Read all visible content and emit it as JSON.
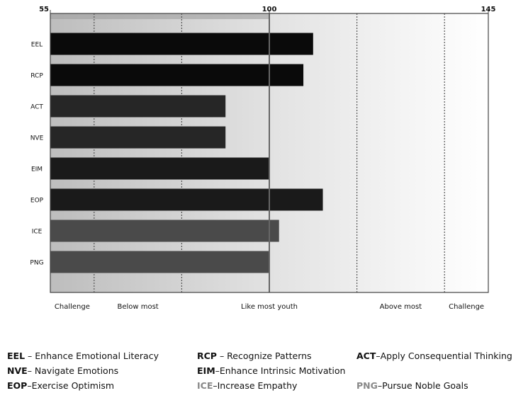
{
  "chart_data": {
    "type": "bar",
    "orientation": "horizontal",
    "title": "",
    "xlabel": "",
    "ylabel": "",
    "xlim": [
      55,
      145
    ],
    "top_ticks": [
      "55",
      "100",
      "145"
    ],
    "categories": [
      "EEL",
      "RCP",
      "ACT",
      "NVE",
      "EIM",
      "EOP",
      "ICE",
      "PNG"
    ],
    "values": [
      109,
      107,
      91,
      91,
      100,
      111,
      102,
      100
    ],
    "bar_colors": [
      "#0a0a0a",
      "#0a0a0a",
      "#262626",
      "#262626",
      "#1a1a1a",
      "#1a1a1a",
      "#4a4a4a",
      "#4a4a4a"
    ],
    "bands": [
      {
        "label": "Challenge",
        "from": 55,
        "to": 64
      },
      {
        "label": "Below most",
        "from": 64,
        "to": 82
      },
      {
        "label": "Like most youth",
        "from": 82,
        "to": 118
      },
      {
        "label": "Above most",
        "from": 118,
        "to": 136
      },
      {
        "label": "Challenge",
        "from": 136,
        "to": 145
      }
    ],
    "reference_line": 100,
    "grid": false
  },
  "legend": {
    "rows": [
      [
        {
          "abbr": "EEL",
          "sep": " – ",
          "text": "Enhance Emotional Literacy",
          "muted": false
        },
        {
          "abbr": "RCP",
          "sep": " – ",
          "text": "Recognize Patterns",
          "muted": false
        },
        {
          "abbr": "ACT",
          "sep": "–",
          "text": "Apply Consequential Thinking",
          "muted": false
        }
      ],
      [
        {
          "abbr": "NVE",
          "sep": "– ",
          "text": "Navigate Emotions",
          "muted": false
        },
        {
          "abbr": "EIM",
          "sep": "–",
          "text": "Enhance Intrinsic Motivation",
          "muted": false
        }
      ],
      [
        {
          "abbr": "EOP",
          "sep": "–",
          "text": "Exercise Optimism",
          "muted": false
        },
        {
          "abbr": "ICE",
          "sep": "–",
          "text": "Increase Empathy",
          "muted": true
        },
        {
          "abbr": "PNG",
          "sep": "–",
          "text": "Pursue Noble Goals",
          "muted": true
        }
      ]
    ]
  }
}
